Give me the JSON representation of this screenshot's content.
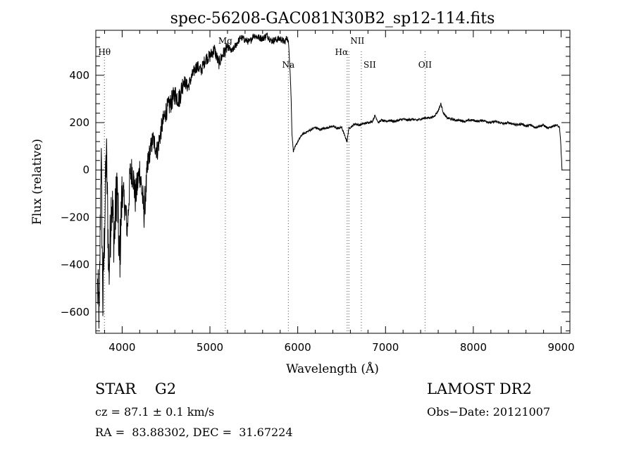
{
  "chart_data": {
    "type": "line",
    "title": "spec-56208-GAC081N30B2_sp12-114.fits",
    "xlabel": "Wavelength (Å)",
    "ylabel": "Flux (relative)",
    "xlim": [
      3700,
      9100
    ],
    "ylim": [
      -690,
      590
    ],
    "x_ticks": [
      4000,
      5000,
      6000,
      7000,
      8000,
      9000
    ],
    "x_tick_labels": [
      "4000",
      "5000",
      "6000",
      "7000",
      "8000",
      "9000"
    ],
    "y_ticks": [
      -600,
      -400,
      -200,
      0,
      200,
      400
    ],
    "y_tick_labels": [
      "−600",
      "−400",
      "−200",
      "0",
      "200",
      "400"
    ],
    "grid": false,
    "line_color": "#000000",
    "marker_color": "#ff0000",
    "series": [
      {
        "x": [
          3720,
          3740,
          3760,
          3780,
          3800,
          3820,
          3850,
          3880,
          3910,
          3940,
          3970,
          4000,
          4030,
          4060,
          4090,
          4120,
          4150,
          4200,
          4250,
          4300,
          4350,
          4400,
          4450,
          4500,
          4550,
          4600,
          4650,
          4700,
          4750,
          4800,
          4850,
          4900,
          4950,
          5000,
          5050,
          5100,
          5150,
          5200,
          5250,
          5300,
          5350,
          5400,
          5450,
          5500,
          5550,
          5600,
          5650,
          5700,
          5750,
          5800,
          5850,
          5880,
          5900,
          5915,
          5925,
          5935,
          5950,
          6000,
          6050,
          6100,
          6150,
          6200,
          6250,
          6300,
          6350,
          6400,
          6450,
          6500,
          6540,
          6563,
          6580,
          6620,
          6650,
          6700,
          6750,
          6800,
          6850,
          6880,
          6920,
          6950,
          7000,
          7050,
          7100,
          7150,
          7200,
          7250,
          7300,
          7350,
          7400,
          7450,
          7500,
          7550,
          7600,
          7630,
          7660,
          7700,
          7750,
          7800,
          7850,
          7900,
          7950,
          8000,
          8050,
          8100,
          8150,
          8200,
          8250,
          8300,
          8350,
          8400,
          8450,
          8500,
          8550,
          8600,
          8650,
          8700,
          8750,
          8800,
          8850,
          8900,
          8950,
          8980,
          8995,
          9010
        ],
        "y": [
          -500,
          -630,
          100,
          -560,
          -250,
          80,
          -450,
          -100,
          -300,
          -50,
          -400,
          -80,
          -150,
          -250,
          -20,
          0,
          -120,
          0,
          -180,
          50,
          130,
          80,
          180,
          250,
          280,
          320,
          300,
          380,
          350,
          400,
          440,
          420,
          470,
          480,
          510,
          450,
          490,
          520,
          500,
          530,
          560,
          550,
          540,
          570,
          560,
          555,
          570,
          545,
          550,
          555,
          540,
          560,
          520,
          400,
          300,
          150,
          80,
          120,
          150,
          160,
          170,
          180,
          170,
          175,
          180,
          185,
          175,
          180,
          140,
          120,
          175,
          185,
          195,
          190,
          195,
          200,
          205,
          230,
          200,
          210,
          205,
          210,
          205,
          210,
          215,
          210,
          215,
          210,
          215,
          220,
          220,
          225,
          250,
          280,
          240,
          220,
          215,
          210,
          210,
          205,
          210,
          210,
          205,
          210,
          205,
          200,
          205,
          200,
          195,
          200,
          195,
          190,
          195,
          185,
          190,
          180,
          185,
          190,
          175,
          185,
          190,
          180,
          120,
          0
        ]
      }
    ],
    "line_markers": [
      {
        "label": "Hθ",
        "wavelength": 3798
      },
      {
        "label": "Mg",
        "wavelength": 5175
      },
      {
        "label": "Na",
        "wavelength": 5893
      },
      {
        "label": "NII",
        "wavelength": 6583
      },
      {
        "label": "Hα",
        "wavelength": 6563
      },
      {
        "label": "SII",
        "wavelength": 6724
      },
      {
        "label": "OII",
        "wavelength": 7450
      }
    ]
  },
  "info": {
    "object_type": "STAR    G2",
    "cz": "cz = 87.1 ± 0.1 km/s",
    "radec": "RA =  83.88302, DEC =  31.67224",
    "survey": "LAMOST DR2",
    "obs_date": "Obs−Date: 20121007"
  }
}
